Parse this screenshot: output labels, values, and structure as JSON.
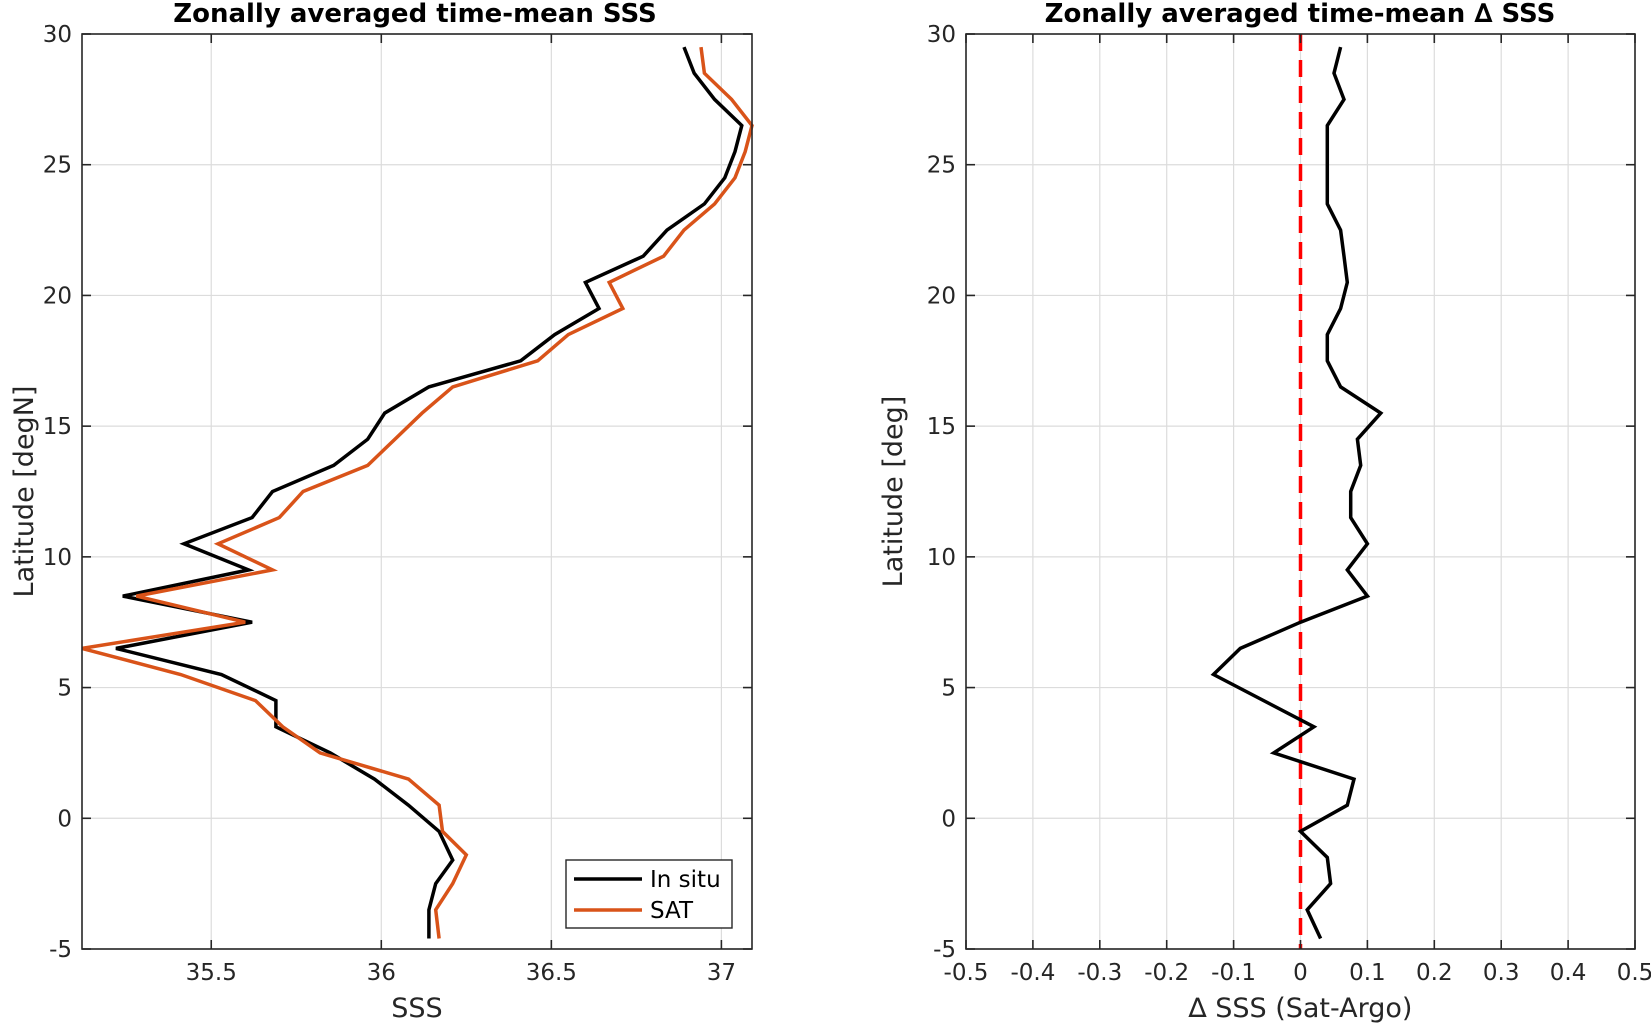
{
  "chart_data": [
    {
      "type": "line",
      "title": "Zonally averaged time-mean SSS",
      "xlabel": "SSS",
      "ylabel": "Latitude [degN]",
      "xlim": [
        35.12,
        37.09
      ],
      "ylim": [
        -5,
        30
      ],
      "xticks": [
        35.5,
        36,
        36.5,
        37
      ],
      "xtick_labels": [
        "35.5",
        "36",
        "36.5",
        "37"
      ],
      "yticks": [
        -5,
        0,
        5,
        10,
        15,
        20,
        25,
        30
      ],
      "ytick_labels": [
        "-5",
        "0",
        "5",
        "10",
        "15",
        "20",
        "25",
        "30"
      ],
      "grid": true,
      "legend_position": "bottom-right",
      "series": [
        {
          "name": "In situ",
          "color": "#000000",
          "points": [
            [
              36.14,
              -4.6
            ],
            [
              36.14,
              -3.5
            ],
            [
              36.16,
              -2.5
            ],
            [
              36.21,
              -1.6
            ],
            [
              36.17,
              -0.5
            ],
            [
              36.08,
              0.5
            ],
            [
              35.98,
              1.5
            ],
            [
              35.85,
              2.5
            ],
            [
              35.69,
              3.5
            ],
            [
              35.69,
              4.5
            ],
            [
              35.53,
              5.5
            ],
            [
              35.22,
              6.5
            ],
            [
              35.62,
              7.5
            ],
            [
              35.24,
              8.5
            ],
            [
              35.61,
              9.5
            ],
            [
              35.42,
              10.5
            ],
            [
              35.62,
              11.5
            ],
            [
              35.68,
              12.5
            ],
            [
              35.86,
              13.5
            ],
            [
              35.96,
              14.5
            ],
            [
              36.01,
              15.5
            ],
            [
              36.14,
              16.5
            ],
            [
              36.41,
              17.5
            ],
            [
              36.51,
              18.5
            ],
            [
              36.64,
              19.5
            ],
            [
              36.6,
              20.5
            ],
            [
              36.77,
              21.5
            ],
            [
              36.84,
              22.5
            ],
            [
              36.95,
              23.5
            ],
            [
              37.01,
              24.5
            ],
            [
              37.04,
              25.5
            ],
            [
              37.06,
              26.5
            ],
            [
              36.98,
              27.5
            ],
            [
              36.92,
              28.5
            ],
            [
              36.89,
              29.5
            ]
          ]
        },
        {
          "name": "SAT",
          "color": "#d95319",
          "points": [
            [
              36.17,
              -4.6
            ],
            [
              36.16,
              -3.5
            ],
            [
              36.21,
              -2.5
            ],
            [
              36.25,
              -1.4
            ],
            [
              36.18,
              -0.5
            ],
            [
              36.17,
              0.5
            ],
            [
              36.08,
              1.5
            ],
            [
              35.82,
              2.5
            ],
            [
              35.71,
              3.5
            ],
            [
              35.63,
              4.5
            ],
            [
              35.41,
              5.5
            ],
            [
              35.12,
              6.5
            ],
            [
              35.6,
              7.5
            ],
            [
              35.28,
              8.5
            ],
            [
              35.68,
              9.5
            ],
            [
              35.52,
              10.5
            ],
            [
              35.7,
              11.5
            ],
            [
              35.77,
              12.5
            ],
            [
              35.96,
              13.5
            ],
            [
              36.04,
              14.5
            ],
            [
              36.12,
              15.5
            ],
            [
              36.21,
              16.5
            ],
            [
              36.46,
              17.5
            ],
            [
              36.55,
              18.5
            ],
            [
              36.71,
              19.5
            ],
            [
              36.67,
              20.5
            ],
            [
              36.83,
              21.5
            ],
            [
              36.89,
              22.5
            ],
            [
              36.98,
              23.5
            ],
            [
              37.04,
              24.5
            ],
            [
              37.07,
              25.5
            ],
            [
              37.09,
              26.5
            ],
            [
              37.03,
              27.5
            ],
            [
              36.95,
              28.5
            ],
            [
              36.94,
              29.5
            ]
          ]
        }
      ]
    },
    {
      "type": "line",
      "title": "Zonally averaged time-mean ∆ SSS",
      "xlabel": "∆ SSS (Sat-Argo)",
      "ylabel": "Latitude [deg]",
      "xlim": [
        -0.5,
        0.5
      ],
      "ylim": [
        -5,
        30
      ],
      "xticks": [
        -0.5,
        -0.4,
        -0.3,
        -0.2,
        -0.1,
        0,
        0.1,
        0.2,
        0.3,
        0.4,
        0.5
      ],
      "xtick_labels": [
        "-0.5",
        "-0.4",
        "-0.3",
        "-0.2",
        "-0.1",
        "0",
        "0.1",
        "0.2",
        "0.3",
        "0.4",
        "0.5"
      ],
      "yticks": [
        -5,
        0,
        5,
        10,
        15,
        20,
        25,
        30
      ],
      "ytick_labels": [
        "-5",
        "0",
        "5",
        "10",
        "15",
        "20",
        "25",
        "30"
      ],
      "grid": true,
      "reference_line": {
        "x": 0,
        "color": "#ff0000",
        "style": "dashed"
      },
      "series": [
        {
          "color": "#000000",
          "points": [
            [
              0.03,
              -4.6
            ],
            [
              0.01,
              -3.5
            ],
            [
              0.045,
              -2.5
            ],
            [
              0.04,
              -1.5
            ],
            [
              0.0,
              -0.5
            ],
            [
              0.07,
              0.5
            ],
            [
              0.08,
              1.5
            ],
            [
              -0.04,
              2.5
            ],
            [
              0.02,
              3.5
            ],
            [
              -0.13,
              5.5
            ],
            [
              -0.09,
              6.5
            ],
            [
              0.0,
              7.5
            ],
            [
              0.1,
              8.5
            ],
            [
              0.07,
              9.5
            ],
            [
              0.1,
              10.5
            ],
            [
              0.075,
              11.5
            ],
            [
              0.075,
              12.5
            ],
            [
              0.09,
              13.5
            ],
            [
              0.085,
              14.5
            ],
            [
              0.12,
              15.5
            ],
            [
              0.06,
              16.5
            ],
            [
              0.04,
              17.5
            ],
            [
              0.04,
              18.5
            ],
            [
              0.06,
              19.5
            ],
            [
              0.07,
              20.5
            ],
            [
              0.065,
              21.5
            ],
            [
              0.06,
              22.5
            ],
            [
              0.04,
              23.5
            ],
            [
              0.04,
              24.5
            ],
            [
              0.04,
              25.5
            ],
            [
              0.04,
              26.5
            ],
            [
              0.065,
              27.5
            ],
            [
              0.05,
              28.5
            ],
            [
              0.06,
              29.5
            ]
          ]
        }
      ]
    }
  ],
  "legend": {
    "items": [
      {
        "label": "In situ",
        "color": "#000000"
      },
      {
        "label": "SAT",
        "color": "#d95319"
      }
    ]
  }
}
